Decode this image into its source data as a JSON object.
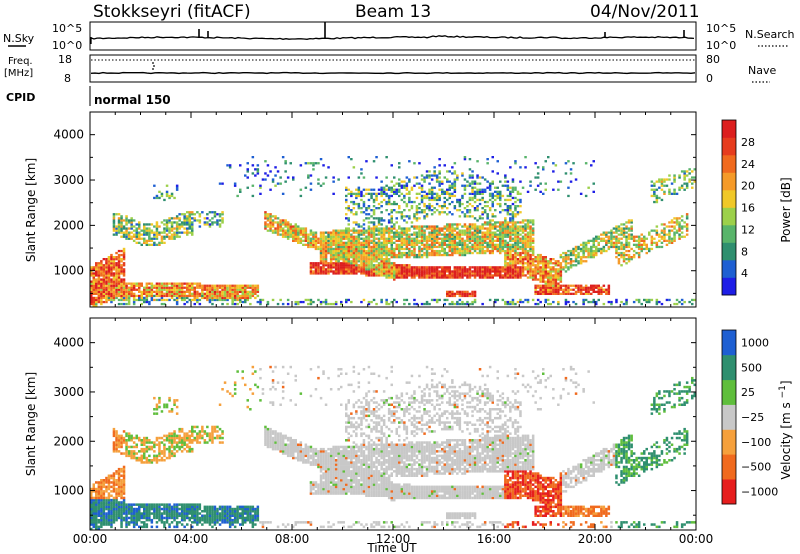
{
  "header": {
    "station": "Stokkseyri (fitACF)",
    "beam": "Beam 13",
    "date": "04/Nov/2011"
  },
  "panels": {
    "nsky_label": "N.Sky",
    "nsky_ticks": [
      "10^5",
      "10^0"
    ],
    "nsearch_label": "N.Search",
    "nsearch_ticks": [
      "10^5",
      "10^0"
    ],
    "freq_label_1": "Freq.",
    "freq_label_2": "[MHz]",
    "freq_ticks": [
      "18",
      "8"
    ],
    "nave_label": "Nave",
    "nave_ticks": [
      "80",
      "0"
    ],
    "cpid_label": "CPID",
    "cpid_value": "normal 150"
  },
  "colors": {
    "power": [
      "#1e1ee6",
      "#1e5fd2",
      "#2f8f6f",
      "#58b46a",
      "#9cd04a",
      "#f0c828",
      "#f59a28",
      "#f06a1e",
      "#e63c1e",
      "#dc1e1e"
    ],
    "velocity": [
      "#e61e1e",
      "#f06a1e",
      "#f5a03c",
      "#c8c8c8",
      "#5fbe3c",
      "#2f8f6f",
      "#1e5fd2"
    ]
  },
  "chart_data": [
    {
      "type": "heatmap",
      "ylabel": "Slant Range [km]",
      "y_ticks": [
        "1000",
        "2000",
        "3000",
        "4000"
      ],
      "ylim": [
        200,
        4500
      ],
      "colorbar_label": "Power [dB]",
      "colorbar_ticks": [
        "4",
        "8",
        "12",
        "16",
        "20",
        "24",
        "28"
      ],
      "colorbar_range": [
        0,
        32
      ]
    },
    {
      "type": "heatmap",
      "ylabel": "Slant Range [km]",
      "y_ticks": [
        "1000",
        "2000",
        "3000",
        "4000"
      ],
      "ylim": [
        200,
        4500
      ],
      "colorbar_label": "Velocity [m s^-1]",
      "colorbar_ticks": [
        "1000",
        "500",
        "25",
        "−25",
        "−100",
        "−500",
        "−1000"
      ],
      "xlabel": "Time UT",
      "x_ticks": [
        "00:00",
        "04:00",
        "08:00",
        "12:00",
        "16:00",
        "20:00",
        "00:00"
      ],
      "xlim": [
        0,
        24
      ]
    }
  ]
}
